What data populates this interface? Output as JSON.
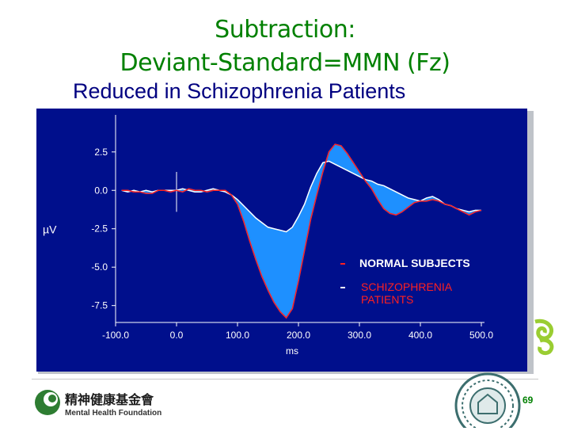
{
  "slide": {
    "title_line1": "Subtraction:",
    "title_line2": "Deviant-Standard=MMN (Fz)",
    "subtitle": "Reduced in Schizophrenia Patients",
    "page_number": "69",
    "logo_text": "精神健康基金會",
    "logo_subtext": "Mental Health Foundation"
  },
  "colors": {
    "plot_bg": "#000f8c",
    "fill_difference": "#1e90ff",
    "normal_line": "#ff2020",
    "schizophrenia_line": "#ffffff",
    "axis_text": "#ffffff",
    "title": "#008000",
    "subtitle": "#000080"
  },
  "chart_data": {
    "type": "line",
    "xlabel": "ms",
    "ylabel": "µV",
    "xlim": [
      -100,
      500
    ],
    "ylim": [
      -8.6,
      4.5
    ],
    "x_ticks": [
      "-100.0",
      "0.0",
      "100.0",
      "200.0",
      "300.0",
      "400.0",
      "500.0"
    ],
    "y_ticks": [
      "2.5",
      "0.0",
      "-2.5",
      "-5.0",
      "-7.5"
    ],
    "y_tick_values": [
      2.5,
      0.0,
      -2.5,
      -5.0,
      -7.5
    ],
    "x_tick_values": [
      -100,
      0,
      100,
      200,
      300,
      400,
      500
    ],
    "legend": [
      "NORMAL SUBJECTS",
      "SCHIZOPHRENIA PATIENTS"
    ],
    "legend_placement": "lower-right",
    "grid": false,
    "x": [
      -90,
      -80,
      -70,
      -60,
      -50,
      -40,
      -30,
      -20,
      -10,
      0,
      10,
      20,
      30,
      40,
      50,
      60,
      70,
      80,
      90,
      100,
      110,
      120,
      130,
      140,
      150,
      160,
      170,
      180,
      190,
      200,
      210,
      220,
      230,
      240,
      250,
      260,
      270,
      280,
      290,
      300,
      310,
      320,
      330,
      340,
      350,
      360,
      370,
      380,
      390,
      400,
      410,
      420,
      430,
      440,
      450,
      460,
      470,
      480,
      490,
      500
    ],
    "series": [
      {
        "name": "NORMAL SUBJECTS",
        "values": [
          0.0,
          0.0,
          -0.1,
          -0.1,
          -0.2,
          -0.2,
          0.0,
          0.0,
          -0.1,
          0.0,
          -0.1,
          0.1,
          0.0,
          0.0,
          -0.1,
          0.0,
          0.0,
          0.0,
          -0.3,
          -0.9,
          -2.0,
          -3.3,
          -4.5,
          -5.6,
          -6.5,
          -7.3,
          -7.9,
          -8.3,
          -7.7,
          -5.9,
          -3.9,
          -1.9,
          -0.3,
          1.2,
          2.5,
          3.0,
          2.9,
          2.4,
          1.8,
          1.2,
          0.6,
          0.1,
          -0.6,
          -1.2,
          -1.5,
          -1.6,
          -1.4,
          -1.1,
          -0.8,
          -0.7,
          -0.7,
          -0.6,
          -0.7,
          -0.9,
          -1.0,
          -1.2,
          -1.4,
          -1.6,
          -1.4,
          -1.3
        ]
      },
      {
        "name": "SCHIZOPHRENIA PATIENTS",
        "values": [
          0.0,
          -0.1,
          0.0,
          -0.1,
          0.0,
          -0.1,
          0.0,
          0.0,
          0.0,
          0.0,
          0.1,
          0.0,
          -0.1,
          -0.1,
          0.0,
          0.1,
          0.0,
          -0.1,
          -0.3,
          -0.6,
          -1.0,
          -1.4,
          -1.8,
          -2.1,
          -2.4,
          -2.5,
          -2.6,
          -2.7,
          -2.4,
          -1.7,
          -0.9,
          0.2,
          1.1,
          1.8,
          1.9,
          1.7,
          1.5,
          1.3,
          1.1,
          0.9,
          0.7,
          0.6,
          0.4,
          0.3,
          0.1,
          -0.1,
          -0.3,
          -0.5,
          -0.6,
          -0.7,
          -0.5,
          -0.4,
          -0.6,
          -0.9,
          -1.0,
          -1.2,
          -1.3,
          -1.4,
          -1.3,
          -1.3
        ]
      }
    ]
  }
}
